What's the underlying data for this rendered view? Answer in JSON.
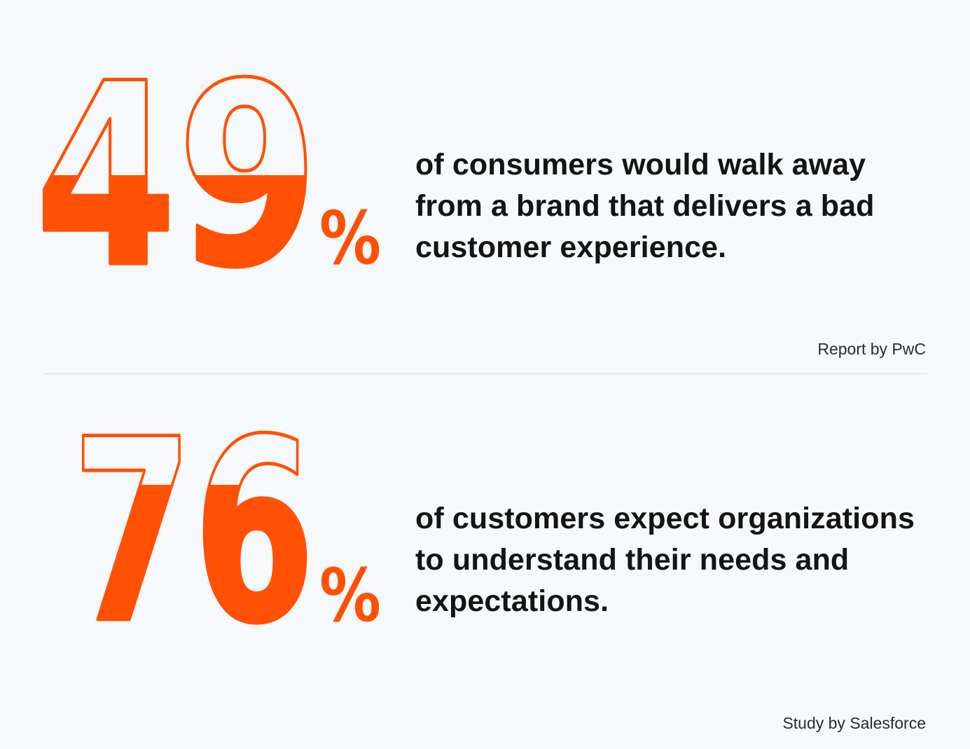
{
  "accent_color": "#ff5004",
  "stats": [
    {
      "value": "49",
      "percent_sign": "%",
      "statement": "of consumers would walk away from a brand that delivers a bad customer experience.",
      "source": "Report by PwC"
    },
    {
      "value": "76",
      "percent_sign": "%",
      "statement": "of customers expect organizations to understand their needs and expectations.",
      "source": "Study by Salesforce"
    }
  ]
}
